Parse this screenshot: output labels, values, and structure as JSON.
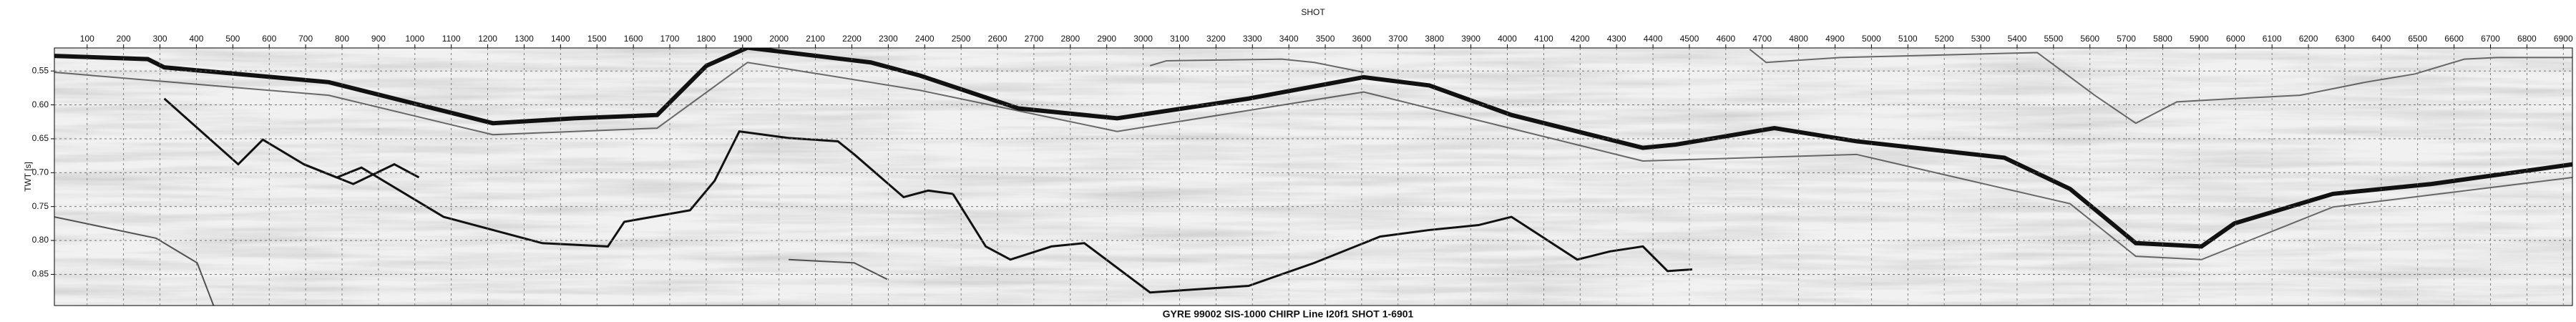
{
  "chart_data": {
    "type": "seismic",
    "title": "GYRE 99002 SIS-1000 CHIRP Line I20f1 SHOT 1-6901",
    "x_label": "SHOT",
    "y_label": "TWT [s]",
    "xlim": [
      10,
      6925
    ],
    "ylim": [
      0.516,
      0.896
    ],
    "xticks": [
      100,
      200,
      300,
      400,
      500,
      600,
      700,
      800,
      900,
      1000,
      1100,
      1200,
      1300,
      1400,
      1500,
      1600,
      1700,
      1800,
      1900,
      2000,
      2100,
      2200,
      2300,
      2400,
      2500,
      2600,
      2700,
      2800,
      2900,
      3000,
      3100,
      3200,
      3300,
      3400,
      3500,
      3600,
      3700,
      3800,
      3900,
      4000,
      4100,
      4200,
      4300,
      4400,
      4500,
      4600,
      4700,
      4800,
      4900,
      5000,
      5100,
      5200,
      5300,
      5400,
      5500,
      5600,
      5700,
      5800,
      5900,
      6000,
      6100,
      6200,
      6300,
      6400,
      6500,
      6600,
      6700,
      6800,
      6900
    ],
    "yticks": [
      0.55,
      {
        "value": 0.6,
        "label": "0.60"
      },
      0.65,
      {
        "value": 0.7,
        "label": "0.70"
      },
      0.75,
      {
        "value": 0.8,
        "label": "0.80"
      },
      0.85
    ],
    "grid": true
  }
}
